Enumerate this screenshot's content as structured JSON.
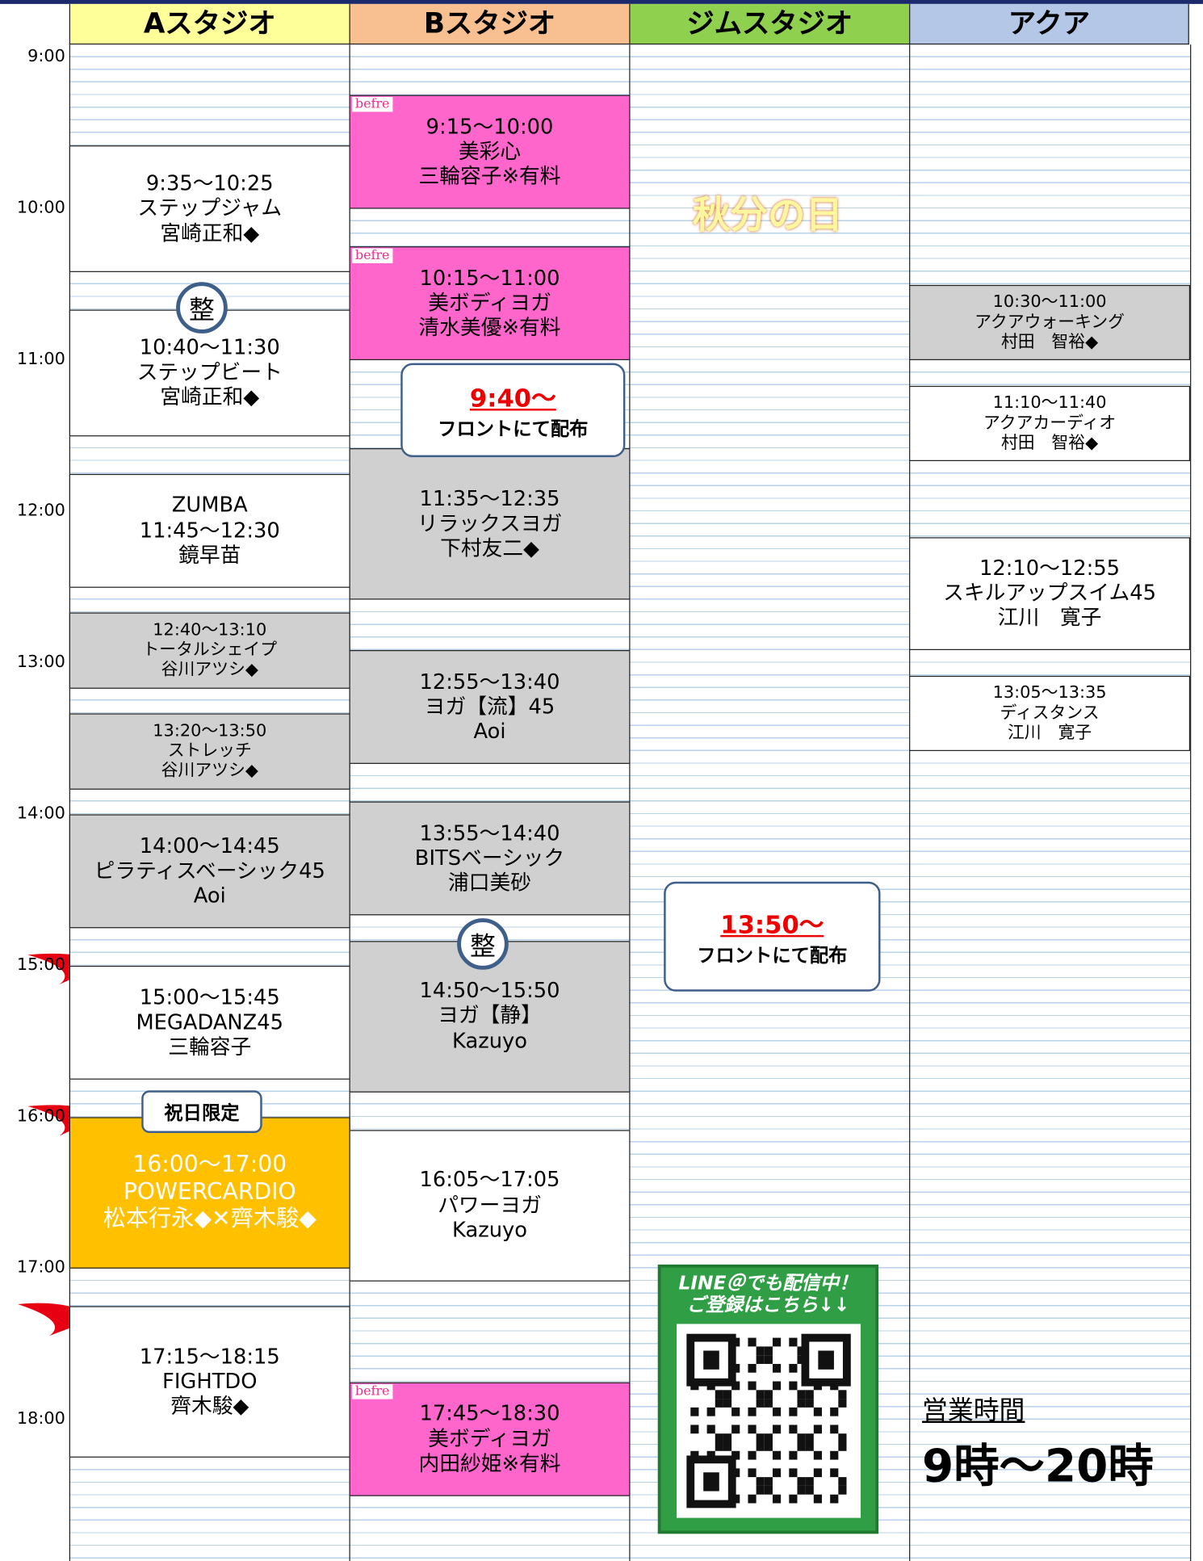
{
  "header": [
    "Aスタジオ",
    "Bスタジオ",
    "ジムスタジオ",
    "アクア"
  ],
  "times": [
    "9:00",
    "10:00",
    "11:00",
    "12:00",
    "13:00",
    "14:00",
    "15:00",
    "16:00",
    "17:00",
    "18:00"
  ],
  "studio_a": [
    {
      "lines": [
        "9:35〜10:25",
        "ステップジャム",
        "宮崎正和◆"
      ],
      "color": "#ffffff"
    },
    {
      "lines": [
        "10:40〜11:30",
        "ステップビート",
        "宮崎正和◆"
      ],
      "color": "#ffffff"
    },
    {
      "lines": [
        "ZUMBA",
        "11:45〜12:30",
        "鏡早苗"
      ],
      "color": "#ffffff"
    },
    {
      "lines": [
        "12:40〜13:10",
        "トータルシェイプ",
        "谷川アツシ◆"
      ],
      "color": "#d0d0d0"
    },
    {
      "lines": [
        "13:20〜13:50",
        "ストレッチ",
        "谷川アツシ◆"
      ],
      "color": "#d0d0d0"
    },
    {
      "lines": [
        "14:00〜14:45",
        "ピラティスベーシック45",
        "Aoi"
      ],
      "color": "#d0d0d0"
    },
    {
      "lines": [
        "15:00〜15:45",
        "MEGADANZ45",
        "三輪容子"
      ],
      "color": "#ffffff"
    },
    {
      "lines": [
        "16:00〜17:00",
        "POWERCARDIO",
        "松本行永◆✕齊木駿◆"
      ],
      "color": "#ffc000"
    },
    {
      "lines": [
        "17:15〜18:15",
        "FIGHTDO",
        "齊木駿◆"
      ],
      "color": "#ffffff"
    }
  ],
  "studio_b": [
    {
      "lines": [
        "9:15〜10:00",
        "美彩心",
        "三輪容子※有料"
      ],
      "color": "#ff66cc"
    },
    {
      "lines": [
        "10:15〜11:00",
        "美ボディヨガ",
        "清水美優※有料"
      ],
      "color": "#ff66cc"
    },
    {
      "lines": [
        "11:35〜12:35",
        "リラックスヨガ",
        "下村友二◆"
      ],
      "color": "#d0d0d0"
    },
    {
      "lines": [
        "12:55〜13:40",
        "ヨガ【流】45",
        "Aoi"
      ],
      "color": "#d0d0d0"
    },
    {
      "lines": [
        "13:55〜14:40",
        "BITSベーシック",
        "浦口美砂"
      ],
      "color": "#d0d0d0"
    },
    {
      "lines": [
        "14:50〜15:50",
        "ヨガ【静】",
        "Kazuyo"
      ],
      "color": "#d0d0d0"
    },
    {
      "lines": [
        "16:05〜17:05",
        "パワーヨガ",
        "Kazuyo"
      ],
      "color": "#ffffff"
    },
    {
      "lines": [
        "17:45〜18:30",
        "美ボディヨガ",
        "内田紗姫※有料"
      ],
      "color": "#ff66cc"
    }
  ],
  "aqua": [
    {
      "lines": [
        "10:30〜11:00",
        "アクアウォーキング",
        "村田　智裕◆"
      ],
      "color": "#d0d0d0"
    },
    {
      "lines": [
        "11:10〜11:40",
        "アクアカーディオ",
        "村田　智裕◆"
      ],
      "color": "#ffffff"
    },
    {
      "lines": [
        "12:10〜12:55",
        "スキルアップスイム45",
        "江川　寛子"
      ],
      "color": "#ffffff"
    },
    {
      "lines": [
        "13:05〜13:35",
        "ディスタンス",
        "江川　寛子"
      ],
      "color": "#ffffff"
    }
  ],
  "befre_logos": [
    "befre",
    "befre",
    "befre"
  ],
  "seals": [
    "整",
    "整"
  ],
  "callouts": [
    {
      "time": "9:40〜",
      "text": "フロントにて配布"
    },
    {
      "time": "13:50〜",
      "text": "フロントにて配布"
    }
  ],
  "holiday_badge": "祝日限定",
  "holiday_art": "秋分の日",
  "line_promo": [
    "LINE＠でも配信中！",
    "ご登録はこちら↓↓"
  ],
  "business_hours": {
    "label": "営業時間",
    "value": "9時〜20時"
  }
}
